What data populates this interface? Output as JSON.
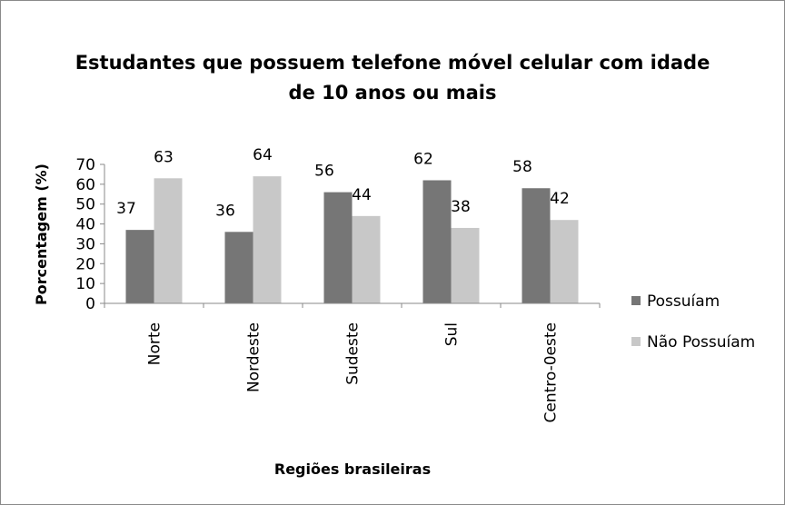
{
  "chart_data": {
    "type": "bar",
    "title_lines": [
      "Estudantes que possuem telefone móvel celular com idade",
      "de 10 anos ou mais"
    ],
    "xlabel": "Regiões brasileiras",
    "ylabel": "Porcentagem (%)",
    "ylim": [
      0,
      70
    ],
    "yticks": [
      0,
      10,
      20,
      30,
      40,
      50,
      60,
      70
    ],
    "grid": false,
    "legend_position": "right",
    "categories": [
      "Norte",
      "Nordeste",
      "Sudeste",
      "Sul",
      "Centro-0este"
    ],
    "series": [
      {
        "name": "Possuíam",
        "color": "#767676",
        "values": [
          37,
          36,
          56,
          62,
          58
        ]
      },
      {
        "name": "Não Possuíam",
        "color": "#c8c8c8",
        "values": [
          63,
          64,
          44,
          38,
          42
        ]
      }
    ]
  }
}
